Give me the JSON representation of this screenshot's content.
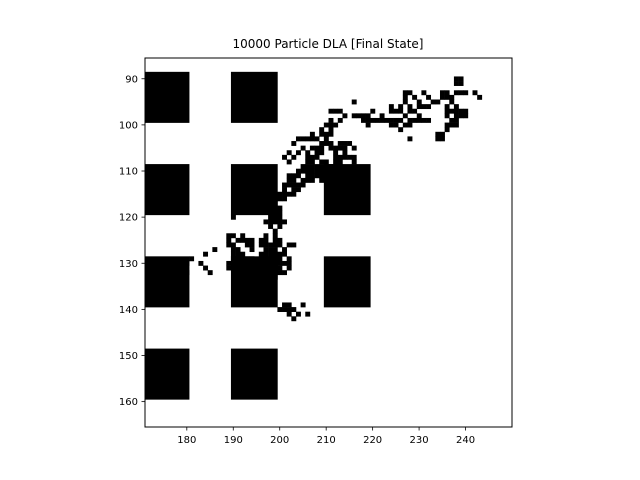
{
  "chart_data": {
    "type": "heatmap",
    "title": "10000 Particle DLA [Final State]",
    "xlabel": "",
    "ylabel": "",
    "xlim": [
      171,
      250
    ],
    "ylim": [
      165.5,
      85.5
    ],
    "y_inverted": true,
    "colormap": "binary",
    "background_color": "#ffffff",
    "cell_color": "#000000",
    "xticks": [
      180,
      190,
      200,
      210,
      220,
      230,
      240
    ],
    "yticks": [
      90,
      100,
      110,
      120,
      130,
      140,
      150,
      160
    ],
    "obstacles": [
      {
        "x0": 171,
        "x1": 180,
        "y0": 89,
        "y1": 99
      },
      {
        "x0": 190,
        "x1": 199,
        "y0": 89,
        "y1": 99
      },
      {
        "x0": 171,
        "x1": 180,
        "y0": 109,
        "y1": 119
      },
      {
        "x0": 190,
        "x1": 199,
        "y0": 109,
        "y1": 119
      },
      {
        "x0": 210,
        "x1": 219,
        "y0": 109,
        "y1": 119
      },
      {
        "x0": 171,
        "x1": 180,
        "y0": 129,
        "y1": 139
      },
      {
        "x0": 190,
        "x1": 199,
        "y0": 129,
        "y1": 139
      },
      {
        "x0": 210,
        "x1": 219,
        "y0": 129,
        "y1": 139
      },
      {
        "x0": 171,
        "x1": 180,
        "y0": 149,
        "y1": 159
      },
      {
        "x0": 190,
        "x1": 199,
        "y0": 149,
        "y1": 159
      }
    ],
    "particles": [
      [
        238,
        90
      ],
      [
        239,
        90
      ],
      [
        238,
        91
      ],
      [
        239,
        91
      ],
      [
        227,
        93
      ],
      [
        228,
        93
      ],
      [
        231,
        93
      ],
      [
        235,
        93
      ],
      [
        236,
        93
      ],
      [
        238,
        93
      ],
      [
        239,
        93
      ],
      [
        240,
        93
      ],
      [
        242,
        93
      ],
      [
        227,
        94
      ],
      [
        229,
        94
      ],
      [
        232,
        94
      ],
      [
        235,
        94
      ],
      [
        236,
        94
      ],
      [
        237,
        94
      ],
      [
        243,
        94
      ],
      [
        216,
        95
      ],
      [
        227,
        95
      ],
      [
        230,
        95
      ],
      [
        233,
        95
      ],
      [
        234,
        95
      ],
      [
        237,
        95
      ],
      [
        224,
        96
      ],
      [
        226,
        96
      ],
      [
        228,
        96
      ],
      [
        230,
        96
      ],
      [
        231,
        96
      ],
      [
        232,
        96
      ],
      [
        236,
        96
      ],
      [
        238,
        96
      ],
      [
        211,
        97
      ],
      [
        212,
        97
      ],
      [
        213,
        97
      ],
      [
        220,
        97
      ],
      [
        224,
        97
      ],
      [
        225,
        97
      ],
      [
        226,
        97
      ],
      [
        228,
        97
      ],
      [
        229,
        97
      ],
      [
        236,
        97
      ],
      [
        237,
        97
      ],
      [
        238,
        97
      ],
      [
        239,
        97
      ],
      [
        240,
        97
      ],
      [
        214,
        98
      ],
      [
        216,
        98
      ],
      [
        217,
        98
      ],
      [
        218,
        98
      ],
      [
        219,
        98
      ],
      [
        222,
        98
      ],
      [
        227,
        98
      ],
      [
        230,
        98
      ],
      [
        236,
        98
      ],
      [
        238,
        98
      ],
      [
        239,
        98
      ],
      [
        240,
        98
      ],
      [
        211,
        99
      ],
      [
        213,
        99
      ],
      [
        218,
        99
      ],
      [
        219,
        99
      ],
      [
        220,
        99
      ],
      [
        221,
        99
      ],
      [
        222,
        99
      ],
      [
        223,
        99
      ],
      [
        224,
        99
      ],
      [
        225,
        99
      ],
      [
        226,
        99
      ],
      [
        228,
        99
      ],
      [
        229,
        99
      ],
      [
        230,
        99
      ],
      [
        231,
        99
      ],
      [
        232,
        99
      ],
      [
        237,
        99
      ],
      [
        238,
        99
      ],
      [
        210,
        100
      ],
      [
        211,
        100
      ],
      [
        212,
        100
      ],
      [
        219,
        100
      ],
      [
        224,
        100
      ],
      [
        225,
        100
      ],
      [
        227,
        100
      ],
      [
        228,
        100
      ],
      [
        236,
        100
      ],
      [
        237,
        100
      ],
      [
        238,
        100
      ],
      [
        209,
        101
      ],
      [
        211,
        101
      ],
      [
        226,
        101
      ],
      [
        236,
        101
      ],
      [
        207,
        102
      ],
      [
        209,
        102
      ],
      [
        210,
        102
      ],
      [
        211,
        102
      ],
      [
        234,
        102
      ],
      [
        235,
        102
      ],
      [
        204,
        103
      ],
      [
        205,
        103
      ],
      [
        206,
        103
      ],
      [
        207,
        103
      ],
      [
        208,
        103
      ],
      [
        210,
        103
      ],
      [
        228,
        103
      ],
      [
        234,
        103
      ],
      [
        235,
        103
      ],
      [
        203,
        104
      ],
      [
        209,
        104
      ],
      [
        210,
        104
      ],
      [
        211,
        104
      ],
      [
        213,
        104
      ],
      [
        214,
        104
      ],
      [
        215,
        104
      ],
      [
        205,
        105
      ],
      [
        207,
        105
      ],
      [
        208,
        105
      ],
      [
        209,
        105
      ],
      [
        211,
        105
      ],
      [
        212,
        105
      ],
      [
        213,
        105
      ],
      [
        214,
        105
      ],
      [
        216,
        105
      ],
      [
        202,
        106
      ],
      [
        204,
        106
      ],
      [
        206,
        106
      ],
      [
        208,
        106
      ],
      [
        209,
        106
      ],
      [
        212,
        106
      ],
      [
        214,
        106
      ],
      [
        201,
        107
      ],
      [
        203,
        107
      ],
      [
        206,
        107
      ],
      [
        207,
        107
      ],
      [
        208,
        107
      ],
      [
        212,
        107
      ],
      [
        213,
        107
      ],
      [
        214,
        107
      ],
      [
        215,
        107
      ],
      [
        216,
        107
      ],
      [
        202,
        108
      ],
      [
        206,
        108
      ],
      [
        207,
        108
      ],
      [
        209,
        108
      ],
      [
        210,
        108
      ],
      [
        212,
        108
      ],
      [
        213,
        108
      ],
      [
        216,
        108
      ],
      [
        205,
        109
      ],
      [
        206,
        109
      ],
      [
        207,
        109
      ],
      [
        208,
        109
      ],
      [
        209,
        109
      ],
      [
        210,
        109
      ],
      [
        211,
        109
      ],
      [
        212,
        109
      ],
      [
        213,
        109
      ],
      [
        204,
        110
      ],
      [
        205,
        110
      ],
      [
        206,
        110
      ],
      [
        207,
        110
      ],
      [
        208,
        110
      ],
      [
        209,
        110
      ],
      [
        210,
        110
      ],
      [
        211,
        110
      ],
      [
        202,
        111
      ],
      [
        203,
        111
      ],
      [
        204,
        111
      ],
      [
        206,
        111
      ],
      [
        207,
        111
      ],
      [
        208,
        111
      ],
      [
        209,
        111
      ],
      [
        202,
        112
      ],
      [
        203,
        112
      ],
      [
        205,
        112
      ],
      [
        206,
        112
      ],
      [
        207,
        112
      ],
      [
        209,
        112
      ],
      [
        201,
        113
      ],
      [
        202,
        113
      ],
      [
        203,
        113
      ],
      [
        204,
        113
      ],
      [
        205,
        113
      ],
      [
        201,
        114
      ],
      [
        203,
        114
      ],
      [
        204,
        114
      ],
      [
        200,
        115
      ],
      [
        201,
        115
      ],
      [
        202,
        115
      ],
      [
        203,
        115
      ],
      [
        199,
        116
      ],
      [
        200,
        116
      ],
      [
        201,
        116
      ],
      [
        198,
        117
      ],
      [
        199,
        117
      ],
      [
        199,
        118
      ],
      [
        200,
        118
      ],
      [
        199,
        119
      ],
      [
        200,
        119
      ],
      [
        190,
        120
      ],
      [
        198,
        120
      ],
      [
        199,
        120
      ],
      [
        200,
        120
      ],
      [
        197,
        121
      ],
      [
        198,
        121
      ],
      [
        199,
        121
      ],
      [
        200,
        121
      ],
      [
        201,
        121
      ],
      [
        198,
        122
      ],
      [
        200,
        122
      ],
      [
        199,
        123
      ],
      [
        189,
        124
      ],
      [
        190,
        124
      ],
      [
        192,
        124
      ],
      [
        197,
        124
      ],
      [
        199,
        124
      ],
      [
        189,
        125
      ],
      [
        191,
        125
      ],
      [
        192,
        125
      ],
      [
        193,
        125
      ],
      [
        194,
        125
      ],
      [
        196,
        125
      ],
      [
        197,
        125
      ],
      [
        199,
        125
      ],
      [
        200,
        125
      ],
      [
        189,
        126
      ],
      [
        190,
        126
      ],
      [
        193,
        126
      ],
      [
        194,
        126
      ],
      [
        196,
        126
      ],
      [
        197,
        126
      ],
      [
        198,
        126
      ],
      [
        199,
        126
      ],
      [
        200,
        126
      ],
      [
        202,
        126
      ],
      [
        203,
        126
      ],
      [
        186,
        127
      ],
      [
        190,
        127
      ],
      [
        191,
        127
      ],
      [
        194,
        127
      ],
      [
        197,
        127
      ],
      [
        198,
        127
      ],
      [
        199,
        127
      ],
      [
        201,
        127
      ],
      [
        184,
        128
      ],
      [
        190,
        128
      ],
      [
        191,
        128
      ],
      [
        192,
        128
      ],
      [
        196,
        128
      ],
      [
        197,
        128
      ],
      [
        198,
        128
      ],
      [
        199,
        128
      ],
      [
        200,
        128
      ],
      [
        201,
        128
      ],
      [
        181,
        129
      ],
      [
        190,
        129
      ],
      [
        191,
        129
      ],
      [
        192,
        129
      ],
      [
        193,
        129
      ],
      [
        194,
        129
      ],
      [
        196,
        129
      ],
      [
        197,
        129
      ],
      [
        198,
        129
      ],
      [
        200,
        129
      ],
      [
        202,
        129
      ],
      [
        180,
        130
      ],
      [
        183,
        130
      ],
      [
        189,
        130
      ],
      [
        190,
        130
      ],
      [
        191,
        130
      ],
      [
        192,
        130
      ],
      [
        193,
        130
      ],
      [
        197,
        130
      ],
      [
        198,
        130
      ],
      [
        199,
        130
      ],
      [
        200,
        130
      ],
      [
        201,
        130
      ],
      [
        202,
        130
      ],
      [
        184,
        131
      ],
      [
        189,
        131
      ],
      [
        197,
        131
      ],
      [
        198,
        131
      ],
      [
        199,
        131
      ],
      [
        200,
        131
      ],
      [
        202,
        131
      ],
      [
        180,
        132
      ],
      [
        185,
        132
      ],
      [
        199,
        132
      ],
      [
        200,
        132
      ],
      [
        201,
        132
      ],
      [
        199,
        133
      ],
      [
        201,
        139
      ],
      [
        202,
        139
      ],
      [
        205,
        139
      ],
      [
        200,
        140
      ],
      [
        201,
        140
      ],
      [
        202,
        140
      ],
      [
        203,
        140
      ],
      [
        202,
        141
      ],
      [
        204,
        141
      ],
      [
        206,
        141
      ],
      [
        203,
        142
      ]
    ]
  }
}
